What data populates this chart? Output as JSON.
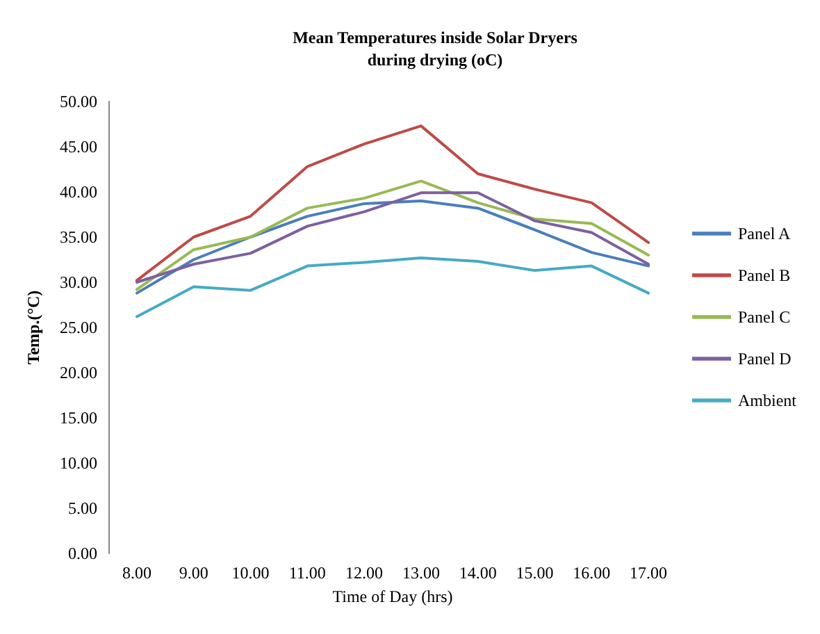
{
  "chart_data": {
    "type": "line",
    "title": "Mean Temperatures inside Solar Dryers\nduring drying (oC)",
    "xlabel": "Time of Day (hrs)",
    "ylabel": "Temp.(°C)",
    "categories": [
      "8.00",
      "9.00",
      "10.00",
      "11.00",
      "12.00",
      "13.00",
      "14.00",
      "15.00",
      "16.00",
      "17.00"
    ],
    "ylim": [
      0,
      50
    ],
    "yticks": [
      {
        "value": 0,
        "label": "0.00"
      },
      {
        "value": 5,
        "label": "5.00"
      },
      {
        "value": 10,
        "label": "10.00"
      },
      {
        "value": 15,
        "label": "15.00"
      },
      {
        "value": 20,
        "label": "20.00"
      },
      {
        "value": 25,
        "label": "25.00"
      },
      {
        "value": 30,
        "label": "30.00"
      },
      {
        "value": 35,
        "label": "35.00"
      },
      {
        "value": 40,
        "label": "40.00"
      },
      {
        "value": 45,
        "label": "45.00"
      },
      {
        "value": 50,
        "label": "50.00"
      }
    ],
    "grid": false,
    "legend": "right",
    "marker": "none",
    "line_style": "solid",
    "series": [
      {
        "name": "Panel A",
        "color": "#4a7ebb",
        "values": [
          28.8,
          32.5,
          35,
          37.3,
          38.7,
          39,
          38.2,
          35.8,
          33.3,
          31.8
        ]
      },
      {
        "name": "Panel B",
        "color": "#be4b48",
        "values": [
          30.2,
          35,
          37.3,
          42.8,
          45.3,
          47.3,
          42,
          40.3,
          38.8,
          34.4
        ]
      },
      {
        "name": "Panel C",
        "color": "#98b954",
        "values": [
          29.2,
          33.6,
          35,
          38.2,
          39.3,
          41.2,
          38.8,
          37,
          36.5,
          33
        ]
      },
      {
        "name": "Panel D",
        "color": "#7d60a0",
        "values": [
          30,
          32,
          33.2,
          36.2,
          37.8,
          39.9,
          39.9,
          36.8,
          35.5,
          32
        ]
      },
      {
        "name": "Ambient",
        "color": "#46aac5",
        "values": [
          26.2,
          29.5,
          29.1,
          31.8,
          32.2,
          32.7,
          32.3,
          31.3,
          31.8,
          28.8
        ]
      }
    ]
  }
}
